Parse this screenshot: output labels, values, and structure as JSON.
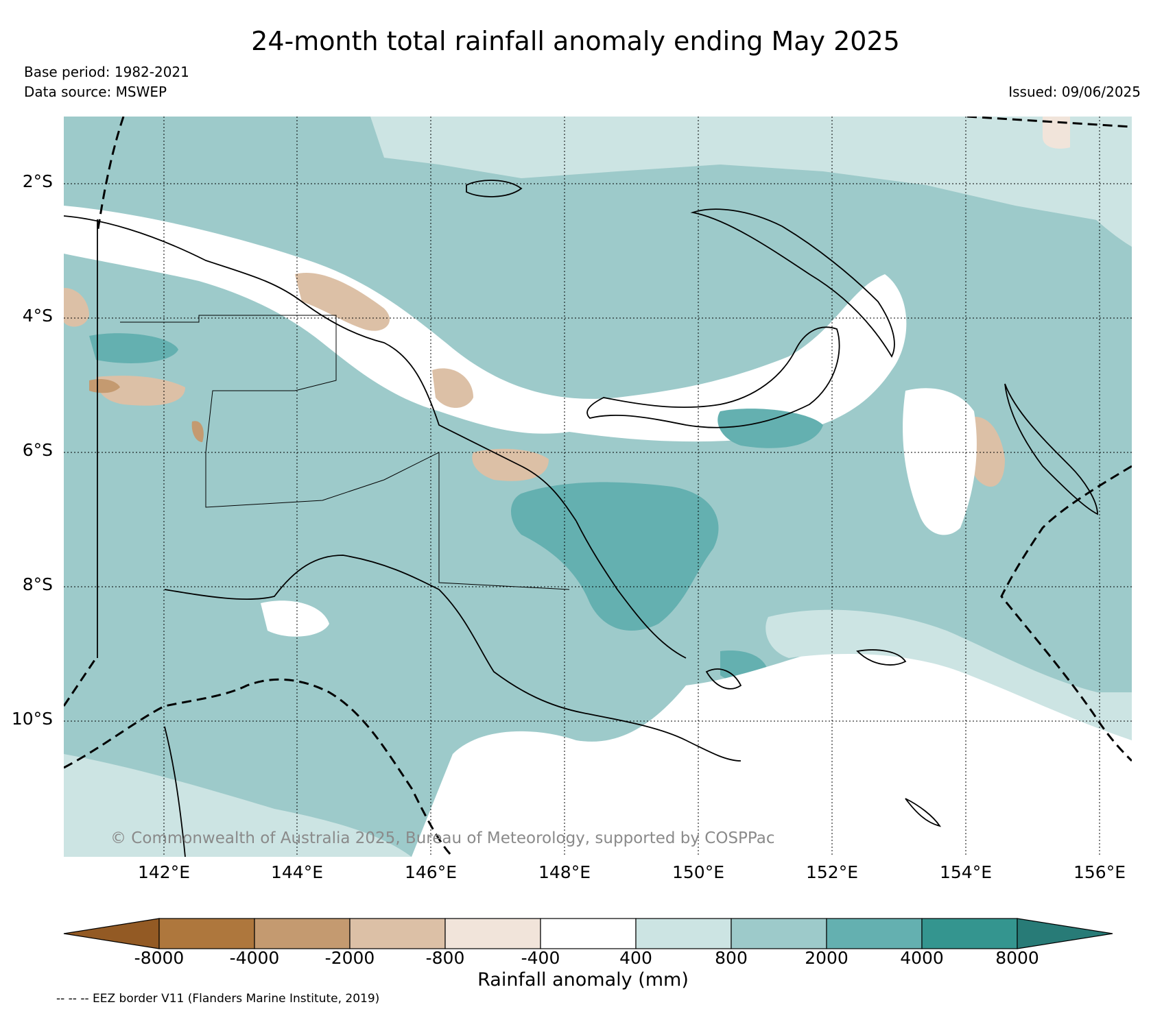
{
  "title": "24-month total rainfall anomaly ending May 2025",
  "base_period": "Base period: 1982-2021",
  "data_source": "Data source: MSWEP",
  "issued": "Issued: 09/06/2025",
  "copyright": "© Commonwealth of Australia 2025, Bureau of Meteorology, supported by COSPPac",
  "eez_note": "-- -- -- EEZ border V11 (Flanders Marine Institute, 2019)",
  "map": {
    "lon_range": [
      140.4,
      156.5
    ],
    "lat_range": [
      -12.0,
      -1.0
    ],
    "lat_ticks": [
      "2°S",
      "4°S",
      "6°S",
      "8°S",
      "10°S"
    ],
    "lon_ticks": [
      "142°E",
      "144°E",
      "146°E",
      "148°E",
      "150°E",
      "152°E",
      "154°E",
      "156°E"
    ],
    "grid": true
  },
  "colorbar": {
    "label": "Rainfall anomaly (mm)",
    "ticks": [
      "-8000",
      "-4000",
      "-2000",
      "-800",
      "-400",
      "400",
      "800",
      "2000",
      "4000",
      "8000"
    ],
    "colors": [
      "#935a24",
      "#ae773d",
      "#c49a70",
      "#dcc0a6",
      "#f1e4da",
      "#ffffff",
      "#cce4e3",
      "#9dcaca",
      "#64b0b0",
      "#34958f",
      "#287b77"
    ]
  }
}
